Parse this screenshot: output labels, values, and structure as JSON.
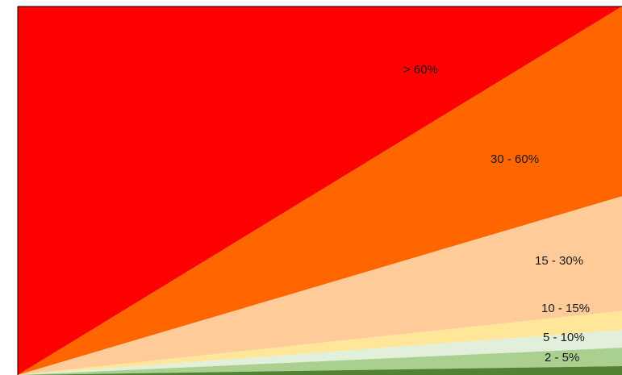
{
  "chart_data": {
    "type": "area",
    "title": "",
    "xlabel": "",
    "ylabel": "",
    "grid": false,
    "legend": "none",
    "x": [
      0,
      1
    ],
    "y_range": [
      0,
      1
    ],
    "series": [
      {
        "label": "> 60%",
        "color": "#ff0000",
        "lower_end": 1.0,
        "upper_end": 1.0
      },
      {
        "label": "30 - 60%",
        "color": "#ff6600",
        "lower_end": 0.485,
        "upper_end": 1.0
      },
      {
        "label": "15 - 30%",
        "color": "#ffcc99",
        "lower_end": 0.174,
        "upper_end": 0.485
      },
      {
        "label": "10 - 15%",
        "color": "#ffe699",
        "lower_end": 0.122,
        "upper_end": 0.174
      },
      {
        "label": "5 - 10%",
        "color": "#e2efda",
        "lower_end": 0.074,
        "upper_end": 0.122
      },
      {
        "label": "2 - 5%",
        "color": "#a9d08e",
        "lower_end": 0.024,
        "upper_end": 0.074
      },
      {
        "label": "",
        "color": "#548235",
        "lower_end": 0.0,
        "upper_end": 0.024
      }
    ]
  }
}
